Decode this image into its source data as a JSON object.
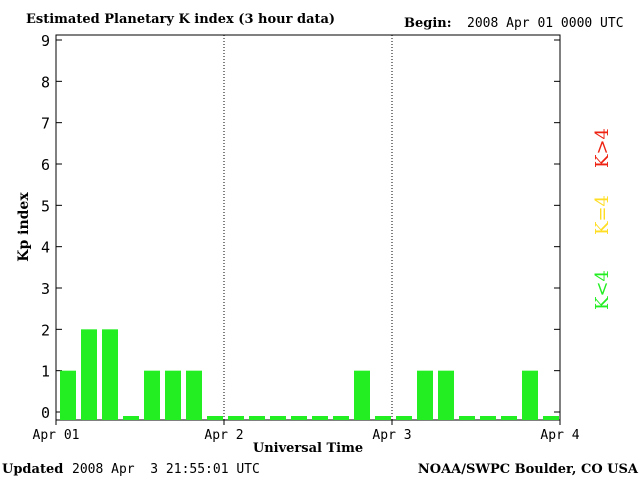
{
  "header": {
    "title": "Estimated Planetary K index (3 hour data)",
    "begin_label": "Begin:",
    "begin_value": "2008 Apr 01 0000 UTC"
  },
  "footer": {
    "updated_label": "Updated",
    "updated_value": "2008 Apr  3 21:55:01 UTC",
    "source": "NOAA/SWPC Boulder, CO USA"
  },
  "legend": [
    {
      "label": "K<4",
      "color": "#22ee22"
    },
    {
      "label": "K=4",
      "color": "#ffdd22"
    },
    {
      "label": "K>4",
      "color": "#ee2211"
    }
  ],
  "chart_data": {
    "type": "bar",
    "title": "Estimated Planetary K index (3 hour data)",
    "xlabel": "Universal Time",
    "ylabel": "Kp index",
    "ylim": [
      0,
      9
    ],
    "yticks": [
      0,
      1,
      2,
      3,
      4,
      5,
      6,
      7,
      8,
      9
    ],
    "xticks": [
      "Apr 01",
      "Apr 2",
      "Apr 3",
      "Apr 4"
    ],
    "day_dividers": [
      "Apr 2",
      "Apr 3"
    ],
    "bar_color": "#22ee22",
    "series": [
      {
        "values": [
          1,
          2,
          2,
          0,
          1,
          1,
          1,
          0,
          0,
          0,
          0,
          0,
          0,
          0,
          1,
          0,
          0,
          1,
          1,
          0,
          0,
          0,
          1,
          0
        ]
      }
    ]
  }
}
